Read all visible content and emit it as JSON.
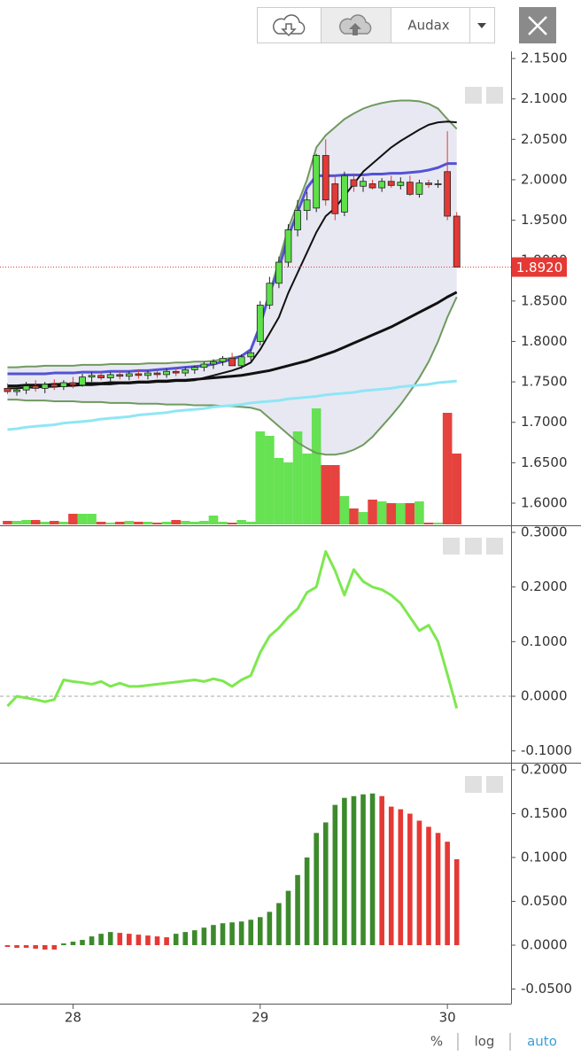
{
  "toolbar": {
    "profile": "Audax"
  },
  "footer": {
    "options": [
      "%",
      "log",
      "auto"
    ]
  },
  "chart_data": [
    {
      "type": "candlestick",
      "x": [
        27.65,
        27.7,
        27.75,
        27.8,
        27.85,
        27.9,
        27.95,
        28,
        28.05,
        28.1,
        28.15,
        28.2,
        28.25,
        28.3,
        28.35,
        28.4,
        28.45,
        28.5,
        28.55,
        28.6,
        28.65,
        28.7,
        28.75,
        28.8,
        28.85,
        28.9,
        28.95,
        29,
        29.05,
        29.1,
        29.15,
        29.2,
        29.25,
        29.3,
        29.35,
        29.4,
        29.45,
        29.5,
        29.55,
        29.6,
        29.65,
        29.7,
        29.75,
        29.8,
        29.85,
        29.9,
        29.95,
        30,
        30.05
      ],
      "xlim": [
        27.61,
        30.34
      ],
      "ylim": [
        1.5737,
        2.1566
      ],
      "yticks": [
        {
          "value": 2.15,
          "label": "2.1500"
        },
        {
          "value": 2.1,
          "label": "2.1000"
        },
        {
          "value": 2.05,
          "label": "2.0500"
        },
        {
          "value": 2.0,
          "label": "2.0000"
        },
        {
          "value": 1.95,
          "label": "1.9500"
        },
        {
          "value": 1.9,
          "label": "1.9000"
        },
        {
          "value": 1.85,
          "label": "1.8500"
        },
        {
          "value": 1.8,
          "label": "1.8000"
        },
        {
          "value": 1.75,
          "label": "1.7500"
        },
        {
          "value": 1.7,
          "label": "1.7000"
        },
        {
          "value": 1.65,
          "label": "1.6500"
        },
        {
          "value": 1.6,
          "label": "1.6000"
        }
      ],
      "open": [
        1.742,
        1.738,
        1.74,
        1.745,
        1.742,
        1.747,
        1.744,
        1.749,
        1.746,
        1.756,
        1.758,
        1.755,
        1.759,
        1.757,
        1.76,
        1.758,
        1.761,
        1.759,
        1.763,
        1.761,
        1.765,
        1.768,
        1.772,
        1.775,
        1.779,
        1.77,
        1.781,
        1.8,
        1.845,
        1.872,
        1.898,
        1.938,
        1.962,
        1.965,
        2.03,
        1.995,
        1.96,
        2.0,
        1.992,
        1.995,
        1.99,
        1.998,
        1.993,
        1.997,
        1.982,
        1.996,
        1.994,
        2.01,
        1.955
      ],
      "high": [
        1.748,
        1.745,
        1.75,
        1.752,
        1.75,
        1.753,
        1.752,
        1.756,
        1.76,
        1.762,
        1.763,
        1.762,
        1.764,
        1.763,
        1.765,
        1.764,
        1.766,
        1.766,
        1.768,
        1.768,
        1.77,
        1.775,
        1.778,
        1.782,
        1.786,
        1.784,
        1.79,
        1.85,
        1.88,
        1.905,
        1.945,
        1.975,
        1.985,
        2.032,
        2.05,
        2.005,
        2.01,
        2.008,
        2.003,
        2.0,
        2.002,
        2.005,
        2.003,
        2.005,
        2.0,
        2.0,
        2.0,
        2.06,
        1.96
      ],
      "low": [
        1.735,
        1.733,
        1.735,
        1.738,
        1.736,
        1.74,
        1.74,
        1.742,
        1.744,
        1.75,
        1.752,
        1.75,
        1.753,
        1.752,
        1.754,
        1.753,
        1.755,
        1.755,
        1.757,
        1.757,
        1.76,
        1.763,
        1.766,
        1.77,
        1.773,
        1.766,
        1.776,
        1.795,
        1.84,
        1.866,
        1.892,
        1.93,
        1.95,
        1.96,
        1.968,
        1.95,
        1.955,
        1.985,
        1.985,
        1.988,
        1.985,
        1.99,
        1.988,
        1.98,
        1.978,
        1.99,
        1.99,
        1.95,
        1.892
      ],
      "close": [
        1.738,
        1.74,
        1.745,
        1.742,
        1.747,
        1.744,
        1.749,
        1.746,
        1.756,
        1.758,
        1.755,
        1.759,
        1.757,
        1.76,
        1.758,
        1.761,
        1.759,
        1.763,
        1.761,
        1.765,
        1.768,
        1.772,
        1.775,
        1.779,
        1.77,
        1.781,
        1.786,
        1.845,
        1.872,
        1.898,
        1.938,
        1.962,
        1.975,
        2.03,
        1.975,
        1.958,
        2.005,
        1.992,
        1.998,
        1.99,
        1.998,
        1.993,
        1.997,
        1.982,
        1.996,
        1.994,
        1.995,
        1.955,
        1.892
      ],
      "color_up": "#5ee04a",
      "color_down": "#e53935",
      "volume": {
        "values": [
          4,
          4,
          5,
          5,
          3,
          4,
          3,
          12,
          12,
          12,
          3,
          2,
          3,
          4,
          3,
          3,
          2,
          3,
          5,
          4,
          3,
          4,
          10,
          3,
          2,
          5,
          3,
          105,
          100,
          75,
          70,
          105,
          80,
          131,
          67,
          67,
          32,
          18,
          14,
          28,
          26,
          24,
          24,
          24,
          26,
          2,
          2,
          126,
          80
        ],
        "vlim": [
          0,
          532
        ]
      },
      "bands": {
        "color": "#6f9a5f",
        "fill": "#e4e4f0",
        "upper": [
          1.768,
          1.768,
          1.769,
          1.769,
          1.77,
          1.77,
          1.77,
          1.77,
          1.771,
          1.771,
          1.771,
          1.772,
          1.772,
          1.772,
          1.772,
          1.773,
          1.773,
          1.773,
          1.774,
          1.774,
          1.775,
          1.775,
          1.776,
          1.778,
          1.78,
          1.782,
          1.79,
          1.82,
          1.86,
          1.9,
          1.94,
          1.97,
          2.0,
          2.04,
          2.055,
          2.065,
          2.075,
          2.082,
          2.088,
          2.092,
          2.095,
          2.097,
          2.098,
          2.098,
          2.097,
          2.094,
          2.088,
          2.075,
          2.063
        ],
        "lower": [
          1.728,
          1.728,
          1.727,
          1.727,
          1.727,
          1.726,
          1.726,
          1.726,
          1.725,
          1.725,
          1.725,
          1.724,
          1.724,
          1.724,
          1.723,
          1.723,
          1.723,
          1.722,
          1.722,
          1.722,
          1.721,
          1.721,
          1.721,
          1.72,
          1.72,
          1.719,
          1.718,
          1.715,
          1.705,
          1.695,
          1.685,
          1.675,
          1.668,
          1.662,
          1.66,
          1.66,
          1.662,
          1.666,
          1.672,
          1.682,
          1.695,
          1.708,
          1.722,
          1.738,
          1.755,
          1.775,
          1.8,
          1.83,
          1.855
        ]
      },
      "lines": [
        {
          "color": "#8fe6f5",
          "width": 3,
          "values": [
            1.691,
            1.692,
            1.694,
            1.695,
            1.696,
            1.697,
            1.699,
            1.7,
            1.701,
            1.702,
            1.704,
            1.705,
            1.706,
            1.707,
            1.709,
            1.71,
            1.711,
            1.712,
            1.714,
            1.715,
            1.716,
            1.717,
            1.719,
            1.72,
            1.721,
            1.722,
            1.724,
            1.725,
            1.726,
            1.727,
            1.729,
            1.73,
            1.731,
            1.732,
            1.734,
            1.735,
            1.736,
            1.737,
            1.739,
            1.74,
            1.741,
            1.742,
            1.744,
            1.745,
            1.746,
            1.747,
            1.749,
            1.75,
            1.751
          ]
        },
        {
          "color": "#111111",
          "width": 3,
          "values": [
            1.745,
            1.745,
            1.746,
            1.746,
            1.746,
            1.747,
            1.747,
            1.747,
            1.748,
            1.748,
            1.748,
            1.749,
            1.749,
            1.749,
            1.75,
            1.75,
            1.751,
            1.751,
            1.752,
            1.752,
            1.753,
            1.754,
            1.755,
            1.756,
            1.757,
            1.758,
            1.76,
            1.762,
            1.764,
            1.767,
            1.77,
            1.773,
            1.776,
            1.78,
            1.784,
            1.788,
            1.793,
            1.798,
            1.803,
            1.808,
            1.813,
            1.818,
            1.824,
            1.83,
            1.836,
            1.842,
            1.848,
            1.855,
            1.861
          ]
        },
        {
          "color": "#5353d6",
          "width": 3,
          "values": [
            1.76,
            1.76,
            1.76,
            1.76,
            1.76,
            1.761,
            1.761,
            1.761,
            1.762,
            1.762,
            1.762,
            1.763,
            1.763,
            1.763,
            1.764,
            1.764,
            1.765,
            1.766,
            1.767,
            1.768,
            1.769,
            1.77,
            1.772,
            1.775,
            1.778,
            1.782,
            1.79,
            1.82,
            1.86,
            1.89,
            1.93,
            1.96,
            1.99,
            2.005,
            2.005,
            2.005,
            2.006,
            2.006,
            2.006,
            2.007,
            2.007,
            2.008,
            2.008,
            2.009,
            2.01,
            2.012,
            2.015,
            2.02,
            2.02
          ]
        },
        {
          "color": "#111111",
          "width": 2,
          "values": [
            1.742,
            1.742,
            1.743,
            1.743,
            1.744,
            1.744,
            1.745,
            1.745,
            1.746,
            1.746,
            1.747,
            1.747,
            1.748,
            1.748,
            1.749,
            1.749,
            1.75,
            1.75,
            1.751,
            1.751,
            1.752,
            1.755,
            1.758,
            1.761,
            1.764,
            1.768,
            1.774,
            1.79,
            1.81,
            1.83,
            1.86,
            1.885,
            1.91,
            1.935,
            1.955,
            1.965,
            1.98,
            1.995,
            2.01,
            2.02,
            2.03,
            2.04,
            2.048,
            2.055,
            2.062,
            2.068,
            2.071,
            2.072,
            2.071
          ]
        }
      ],
      "last_price": {
        "value": 1.892,
        "label": "1.8920",
        "color": "#e53935"
      }
    },
    {
      "type": "line",
      "x": [
        27.65,
        27.7,
        27.75,
        27.8,
        27.85,
        27.9,
        27.95,
        28,
        28.05,
        28.1,
        28.15,
        28.2,
        28.25,
        28.3,
        28.35,
        28.4,
        28.45,
        28.5,
        28.55,
        28.6,
        28.65,
        28.7,
        28.75,
        28.8,
        28.85,
        28.9,
        28.95,
        29,
        29.05,
        29.1,
        29.15,
        29.2,
        29.25,
        29.3,
        29.35,
        29.4,
        29.45,
        29.5,
        29.55,
        29.6,
        29.65,
        29.7,
        29.75,
        29.8,
        29.85,
        29.9,
        29.95,
        30,
        30.05
      ],
      "xlim": [
        27.61,
        30.34
      ],
      "ylim": [
        -0.12,
        0.3113
      ],
      "yticks": [
        {
          "value": 0.3,
          "label": "0.3000"
        },
        {
          "value": 0.2,
          "label": "0.2000"
        },
        {
          "value": 0.1,
          "label": "0.1000"
        },
        {
          "value": 0,
          "label": "0.0000"
        },
        {
          "value": -0.1,
          "label": "-0.1000"
        }
      ],
      "zero_line": true,
      "color": "#7de84f",
      "values": [
        -0.018,
        0,
        -0.003,
        -0.006,
        -0.01,
        -0.006,
        0.03,
        0.027,
        0.025,
        0.022,
        0.027,
        0.018,
        0.024,
        0.018,
        0.018,
        0.02,
        0.022,
        0.024,
        0.026,
        0.028,
        0.03,
        0.027,
        0.032,
        0.028,
        0.018,
        0.03,
        0.038,
        0.08,
        0.11,
        0.125,
        0.145,
        0.16,
        0.19,
        0.2,
        0.265,
        0.23,
        0.185,
        0.232,
        0.21,
        0.2,
        0.195,
        0.185,
        0.17,
        0.145,
        0.12,
        0.13,
        0.1,
        0.04,
        -0.022
      ]
    },
    {
      "type": "histogram",
      "x": [
        27.65,
        27.7,
        27.75,
        27.8,
        27.85,
        27.9,
        27.95,
        28,
        28.05,
        28.1,
        28.15,
        28.2,
        28.25,
        28.3,
        28.35,
        28.4,
        28.45,
        28.5,
        28.55,
        28.6,
        28.65,
        28.7,
        28.75,
        28.8,
        28.85,
        28.9,
        28.95,
        29,
        29.05,
        29.1,
        29.15,
        29.2,
        29.25,
        29.3,
        29.35,
        29.4,
        29.45,
        29.5,
        29.55,
        29.6,
        29.65,
        29.7,
        29.75,
        29.8,
        29.85,
        29.9,
        29.95,
        30,
        30.05
      ],
      "xlim": [
        27.61,
        30.34
      ],
      "xticks": [
        28,
        29,
        30
      ],
      "ylim": [
        -0.0667,
        0.2071
      ],
      "yticks": [
        {
          "value": 0.2,
          "label": "0.2000"
        },
        {
          "value": 0.15,
          "label": "0.1500"
        },
        {
          "value": 0.1,
          "label": "0.1000"
        },
        {
          "value": 0.05,
          "label": "0.0500"
        },
        {
          "value": 0,
          "label": "0.0000"
        },
        {
          "value": -0.05,
          "label": "-0.0500"
        }
      ],
      "color_up": "#3d8a2c",
      "color_down": "#e53935",
      "values": [
        -0.002,
        -0.003,
        -0.003,
        -0.004,
        -0.005,
        -0.005,
        0.002,
        0.004,
        0.006,
        0.01,
        0.013,
        0.015,
        0.014,
        0.013,
        0.012,
        0.011,
        0.01,
        0.009,
        0.013,
        0.015,
        0.017,
        0.02,
        0.023,
        0.025,
        0.026,
        0.027,
        0.029,
        0.032,
        0.038,
        0.048,
        0.062,
        0.08,
        0.1,
        0.128,
        0.14,
        0.16,
        0.168,
        0.17,
        0.172,
        0.173,
        0.17,
        0.158,
        0.155,
        0.15,
        0.142,
        0.135,
        0.128,
        0.118,
        0.098
      ]
    }
  ]
}
